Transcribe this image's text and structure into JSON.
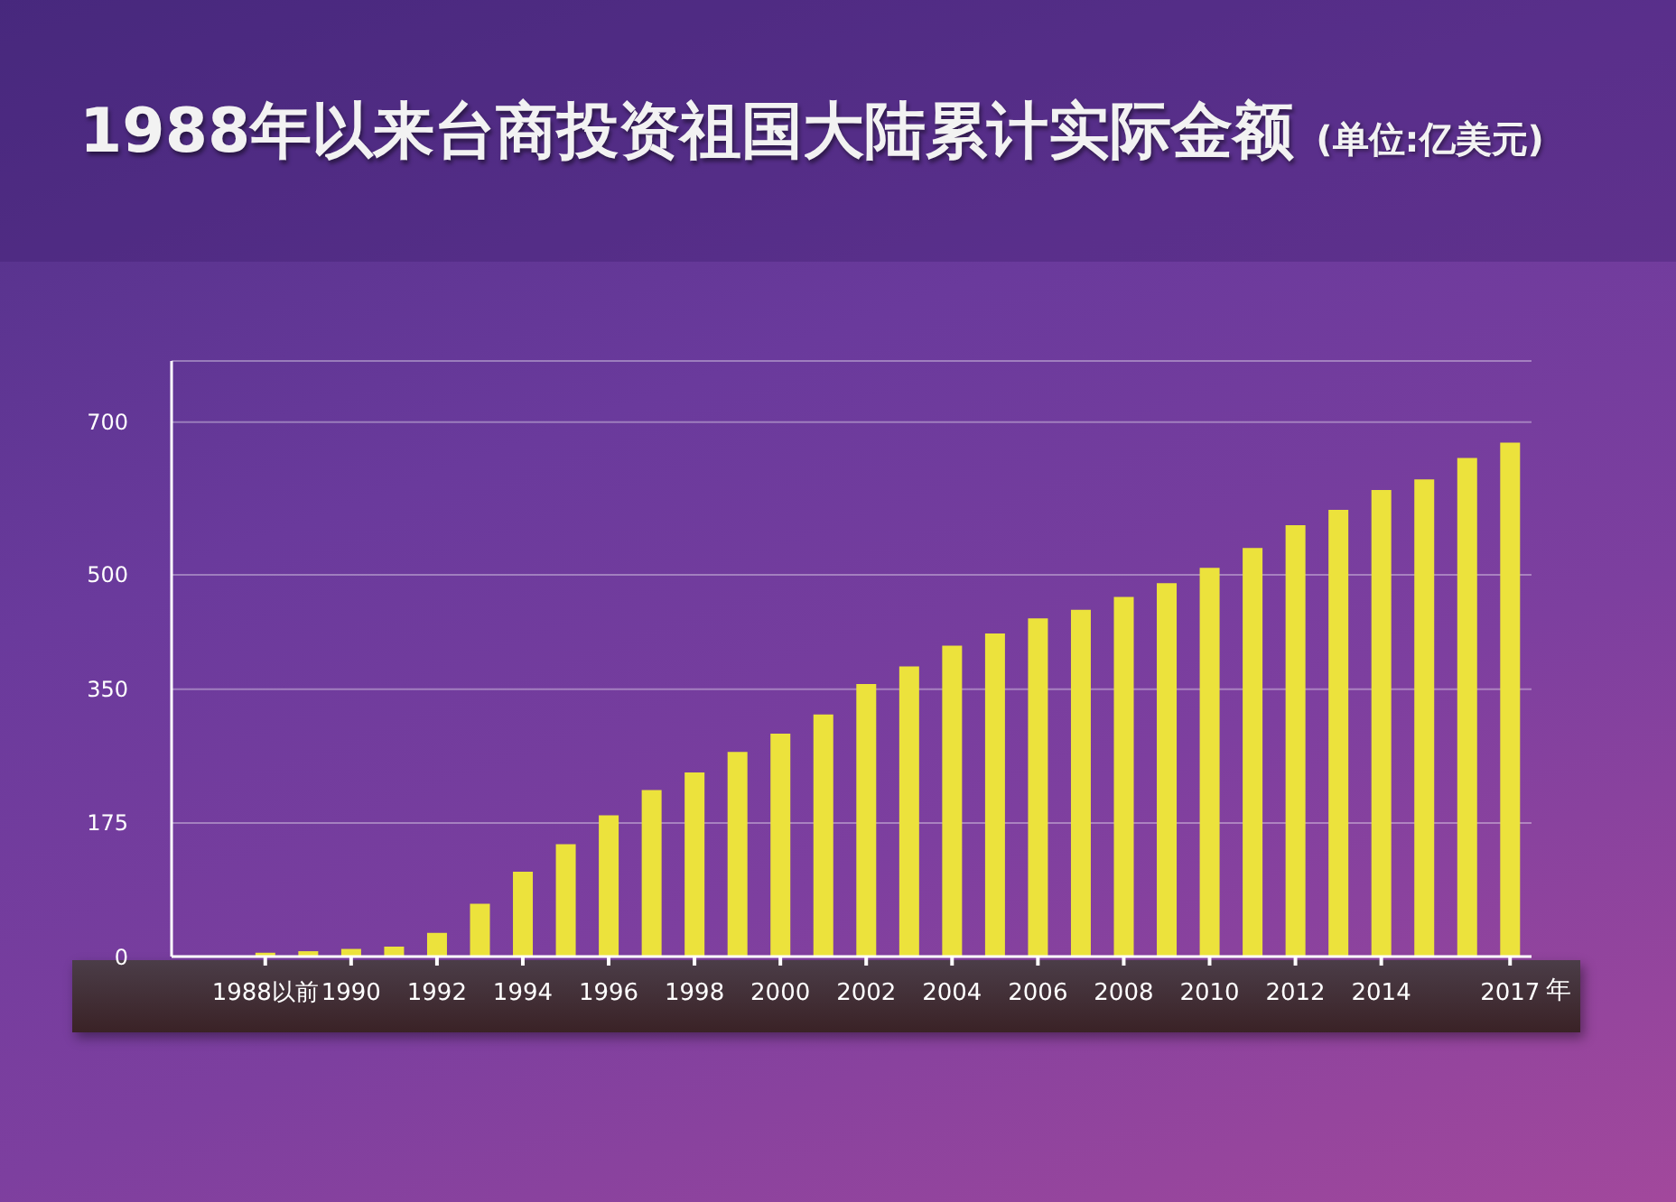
{
  "chart_data": {
    "type": "bar",
    "title": "1988年以来台商投资祖国大陆累计实际金额",
    "subtitle": "(单位:亿美元)",
    "xlabel": "年",
    "categories": [
      "1988以前",
      null,
      "1990",
      null,
      "1992",
      null,
      "1994",
      null,
      "1996",
      null,
      "1998",
      null,
      "2000",
      null,
      "2002",
      null,
      "2004",
      null,
      "2006",
      null,
      "2008",
      null,
      "2010",
      null,
      "2012",
      null,
      "2014",
      null,
      null,
      "2017"
    ],
    "values": [
      5,
      7,
      10,
      13,
      31,
      69,
      111,
      147,
      185,
      218,
      241,
      268,
      292,
      317,
      357,
      380,
      407,
      423,
      443,
      454,
      471,
      489,
      509,
      535,
      565,
      585,
      611,
      625,
      653,
      673
    ],
    "color": "#ece23c",
    "ylim": [
      0,
      780
    ],
    "yticks": [
      0,
      175,
      350,
      500,
      700
    ],
    "grid": "y"
  }
}
